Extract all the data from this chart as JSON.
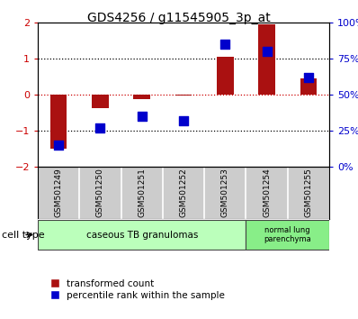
{
  "title": "GDS4256 / g11545905_3p_at",
  "samples": [
    "GSM501249",
    "GSM501250",
    "GSM501251",
    "GSM501252",
    "GSM501253",
    "GSM501254",
    "GSM501255"
  ],
  "transformed_count": [
    -1.5,
    -0.38,
    -0.12,
    -0.02,
    1.05,
    1.95,
    0.45
  ],
  "percentile_rank": [
    15,
    27,
    35,
    32,
    85,
    80,
    62
  ],
  "ylim_left": [
    -2,
    2
  ],
  "ylim_right": [
    0,
    100
  ],
  "yticks_left": [
    -2,
    -1,
    0,
    1,
    2
  ],
  "ytick_labels_right": [
    "0%",
    "25%",
    "50%",
    "75%",
    "100%"
  ],
  "bar_color": "#aa1111",
  "dot_color": "#0000cc",
  "group1_label": "caseous TB granulomas",
  "group2_label": "normal lung\nparenchyma",
  "group1_color": "#bbffbb",
  "group2_color": "#88ee88",
  "cell_type_label": "cell type",
  "legend1_label": "transformed count",
  "legend2_label": "percentile rank within the sample",
  "bg_color": "#ffffff",
  "label_bg_color": "#cccccc",
  "tick_color_left": "#cc0000",
  "tick_color_right": "#0000cc",
  "bar_width": 0.4,
  "dot_size": 55
}
